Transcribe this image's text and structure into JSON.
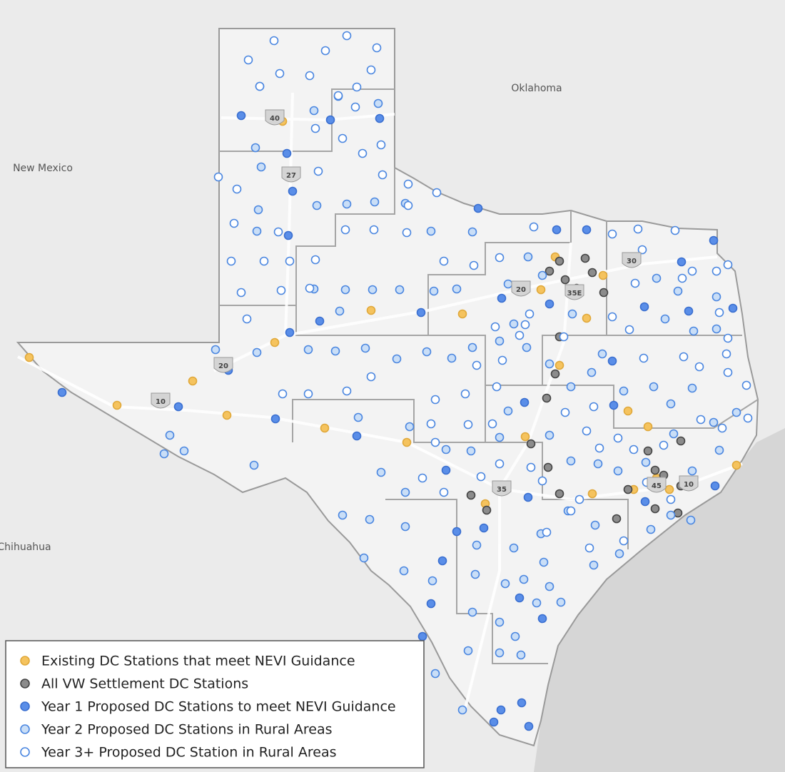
{
  "map": {
    "regions": [
      "Oklahoma",
      "New Mexico",
      "Chihuahua"
    ],
    "highways": [
      "40",
      "27",
      "20",
      "20",
      "10",
      "30",
      "35E",
      "35",
      "10",
      "45"
    ],
    "legend": [
      {
        "label": "Existing DC Stations that meet NEVI Guidance",
        "color": "#f5c35e",
        "stroke": "#e0a83a"
      },
      {
        "label": "All VW Settlement DC Stations",
        "color": "#8c8c8c",
        "stroke": "#444444"
      },
      {
        "label": "Year 1 Proposed DC Stations to meet NEVI Guidance",
        "color": "#5a8ee8",
        "stroke": "#3a6fd0"
      },
      {
        "label": "Year 2 Proposed DC Stations in Rural Areas",
        "color": "#c9def7",
        "stroke": "#4a86e0"
      },
      {
        "label": "Year 3+ Proposed DC Station in Rural Areas",
        "color": "#ffffff",
        "stroke": "#4a86e0"
      }
    ]
  }
}
